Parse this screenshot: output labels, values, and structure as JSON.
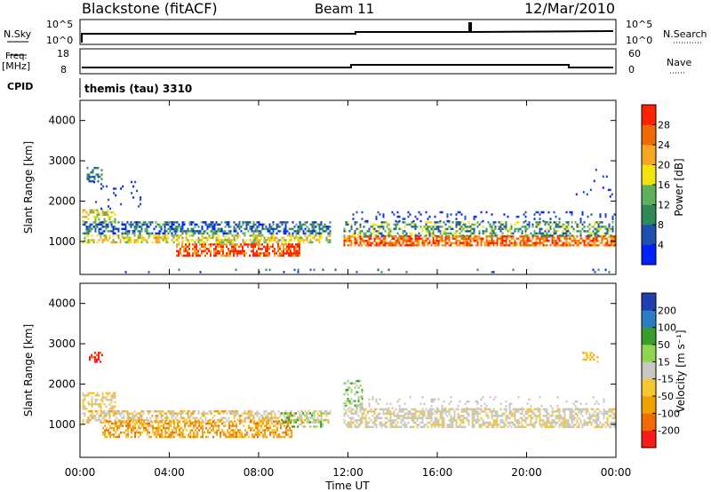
{
  "header": {
    "station": "Blackstone (fitACF)",
    "beam": "Beam 11",
    "date": "12/Mar/2010"
  },
  "status_panels": {
    "nsky_label": "N.Sky",
    "nsky_scale_top": "10^5",
    "nsky_scale_bottom": "10^0",
    "nsearch_label": "N.Search",
    "nsearch_scale_top": "10^5",
    "nsearch_scale_bottom": "10^0",
    "freq_label": "Freq.",
    "freq_unit": "[MHz]",
    "freq_top": "18",
    "freq_bottom": "8",
    "nave_label": "Nave",
    "nave_top": "60",
    "nave_bottom": "0",
    "cpid_label": "CPID",
    "cpid_value": "themis (tau) 3310"
  },
  "colors": {
    "power_scale": [
      "#0022ff",
      "#1f4fb3",
      "#2e8b57",
      "#5fb05a",
      "#f2e30e",
      "#f5a623",
      "#f06a00",
      "#ff2200"
    ],
    "velocity_scale": [
      "#ff1a1a",
      "#f26a00",
      "#f2a000",
      "#f5c830",
      "#c8c8c0",
      "#8fd64f",
      "#3a9e2a",
      "#2a7ec8",
      "#1f3fb3"
    ]
  },
  "chart_data": [
    {
      "type": "heatmap",
      "name_ref": "power",
      "ylabel": "Slant Range [km]",
      "yticks": [
        "1000",
        "2000",
        "3000",
        "4000"
      ],
      "ylim": [
        180,
        4500
      ],
      "xlim": [
        0,
        24
      ],
      "colorbar_label": "Power [dB]",
      "colorbar_ticks": [
        "4",
        "8",
        "12",
        "16",
        "20",
        "24",
        "28"
      ],
      "colorbar_range": [
        0,
        32
      ]
    },
    {
      "type": "heatmap",
      "name_ref": "velocity",
      "ylabel": "Slant Range [km]",
      "yticks": [
        "1000",
        "2000",
        "3000",
        "4000"
      ],
      "ylim": [
        180,
        4500
      ],
      "xlim": [
        0,
        24
      ],
      "xlabel": "Time UT",
      "xticks": [
        "00:00",
        "04:00",
        "08:00",
        "12:00",
        "16:00",
        "20:00",
        "00:00"
      ],
      "colorbar_label": "Velocity [m s⁻¹]",
      "colorbar_ticks": [
        "-200",
        "-100",
        "-50",
        "-15",
        "15",
        "50",
        "100",
        "200"
      ]
    }
  ]
}
